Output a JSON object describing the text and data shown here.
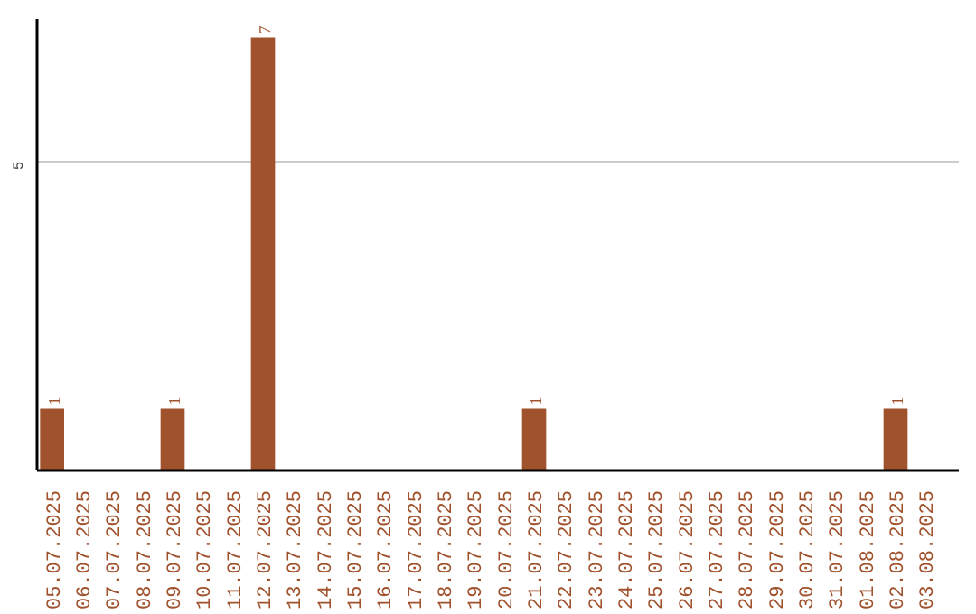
{
  "chart_data": {
    "type": "bar",
    "categories": [
      "05.07.2025",
      "06.07.2025",
      "07.07.2025",
      "08.07.2025",
      "09.07.2025",
      "10.07.2025",
      "11.07.2025",
      "12.07.2025",
      "13.07.2025",
      "14.07.2025",
      "15.07.2025",
      "16.07.2025",
      "17.07.2025",
      "18.07.2025",
      "19.07.2025",
      "20.07.2025",
      "21.07.2025",
      "22.07.2025",
      "23.07.2025",
      "24.07.2025",
      "25.07.2025",
      "26.07.2025",
      "27.07.2025",
      "28.07.2025",
      "29.07.2025",
      "30.07.2025",
      "31.07.2025",
      "01.08.2025",
      "02.08.2025",
      "03.08.2025"
    ],
    "values": [
      1,
      0,
      0,
      0,
      1,
      0,
      0,
      7,
      0,
      0,
      0,
      0,
      0,
      0,
      0,
      0,
      1,
      0,
      0,
      0,
      0,
      0,
      0,
      0,
      0,
      0,
      0,
      0,
      1,
      0
    ],
    "value_labels": [
      "1",
      null,
      null,
      null,
      "1",
      null,
      null,
      "7",
      null,
      null,
      null,
      null,
      null,
      null,
      null,
      null,
      "1",
      null,
      null,
      null,
      null,
      null,
      null,
      null,
      null,
      null,
      null,
      null,
      "1",
      null
    ],
    "color": "#a0522d",
    "ylim": [
      0,
      7.3
    ],
    "yticks": [
      5
    ],
    "grid": "y"
  }
}
